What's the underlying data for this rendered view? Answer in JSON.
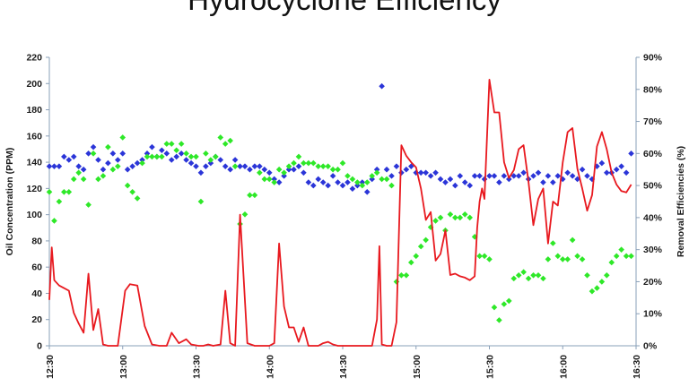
{
  "chart_data": {
    "type": "line",
    "title": "Hydrocyclone Efficiency",
    "ylabel": "Oil Concentration (PPM)",
    "y2label": "Removal Efficiencies (%)",
    "xlabel": "",
    "x_ticks": [
      "12:30",
      "13:00",
      "13:30",
      "14:00",
      "14:30",
      "15:00",
      "15:30",
      "16:00",
      "16:30"
    ],
    "ylim": [
      0,
      220
    ],
    "y_ticks": [
      0,
      20,
      40,
      60,
      80,
      100,
      120,
      140,
      160,
      180,
      200,
      220
    ],
    "y2lim": [
      0,
      90
    ],
    "y2_ticks": [
      "0%",
      "10%",
      "20%",
      "30%",
      "40%",
      "50%",
      "60%",
      "70%",
      "80%",
      "90%"
    ],
    "grid": false,
    "series": [
      {
        "axis": "left",
        "style": "line",
        "color": "#e8191f",
        "x": [
          750,
          751,
          752,
          754,
          756,
          758,
          760,
          762,
          764,
          766,
          768,
          770,
          772,
          774,
          776,
          778,
          781,
          783,
          786,
          789,
          792,
          795,
          798,
          800,
          803,
          806,
          808,
          811,
          813,
          815,
          817,
          820,
          822,
          824,
          826,
          828,
          831,
          834,
          837,
          838,
          840,
          842,
          844,
          846,
          848,
          850,
          852,
          854,
          856,
          858,
          860,
          862,
          864,
          866,
          868,
          870,
          872,
          874,
          876,
          878,
          880,
          882,
          884,
          885,
          886,
          888,
          890,
          892,
          894,
          896,
          898,
          900,
          902,
          904,
          906,
          908,
          910,
          912,
          914,
          916,
          918,
          920,
          922,
          924,
          925,
          926,
          927,
          928,
          930,
          932,
          934,
          936,
          938,
          940,
          942,
          944,
          946,
          948,
          950,
          952,
          954,
          956,
          958,
          960,
          962,
          964,
          966,
          968,
          970,
          972,
          974,
          976,
          978,
          980,
          982,
          984,
          986,
          988
        ],
        "y": [
          35,
          75,
          50,
          46,
          44,
          42,
          25,
          17,
          10,
          55,
          12,
          28,
          1,
          0,
          0,
          0,
          42,
          47,
          46,
          15,
          1,
          0,
          0,
          10,
          2,
          5,
          1,
          0,
          0,
          1,
          0,
          1,
          42,
          2,
          0,
          100,
          2,
          0,
          0,
          0,
          0,
          2,
          78,
          30,
          14,
          14,
          3,
          14,
          0,
          0,
          0,
          2,
          3,
          1,
          0,
          0,
          0,
          0,
          0,
          0,
          0,
          0,
          20,
          76,
          1,
          0,
          0,
          18,
          153,
          145,
          140,
          136,
          120,
          96,
          102,
          65,
          70,
          88,
          54,
          55,
          53,
          52,
          50,
          53,
          90,
          110,
          120,
          112,
          203,
          178,
          178,
          140,
          128,
          134,
          150,
          153,
          125,
          92,
          112,
          120,
          78,
          110,
          107,
          140,
          163,
          166,
          135,
          120,
          103,
          115,
          152,
          163,
          150,
          132,
          123,
          118,
          117,
          123
        ]
      },
      {
        "axis": "right",
        "style": "diamond",
        "color": "#2b35d8",
        "x": [
          750,
          752,
          754,
          756,
          758,
          760,
          762,
          764,
          766,
          768,
          770,
          772,
          774,
          776,
          778,
          780,
          782,
          784,
          786,
          788,
          790,
          792,
          794,
          796,
          798,
          800,
          802,
          804,
          806,
          808,
          810,
          812,
          814,
          816,
          818,
          820,
          822,
          824,
          826,
          828,
          830,
          832,
          834,
          836,
          838,
          840,
          842,
          844,
          846,
          848,
          850,
          852,
          854,
          856,
          858,
          860,
          862,
          864,
          866,
          868,
          870,
          872,
          874,
          876,
          878,
          880,
          882,
          884,
          886,
          888,
          890,
          892,
          894,
          896,
          898,
          900,
          902,
          904,
          906,
          908,
          910,
          912,
          914,
          916,
          918,
          920,
          922,
          924,
          926,
          928,
          930,
          932,
          934,
          936,
          938,
          940,
          942,
          944,
          946,
          948,
          950,
          952,
          954,
          956,
          958,
          960,
          962,
          964,
          966,
          968,
          970,
          972,
          974,
          976,
          978,
          980,
          982,
          984,
          986,
          988
        ],
        "y": [
          56,
          56,
          56,
          59,
          58,
          59,
          56,
          55,
          60,
          62,
          58,
          55,
          57,
          60,
          58,
          60,
          55,
          56,
          57,
          58,
          60,
          62,
          59,
          61,
          60,
          58,
          59,
          60,
          58,
          57,
          56,
          54,
          56,
          57,
          59,
          58,
          56,
          55,
          58,
          56,
          56,
          55,
          56,
          56,
          55,
          54,
          52,
          51,
          53,
          55,
          55,
          56,
          54,
          51,
          50,
          52,
          51,
          50,
          53,
          51,
          50,
          51,
          49,
          50,
          51,
          48,
          52,
          55,
          81,
          55,
          53,
          56,
          54,
          55,
          56,
          54,
          54,
          54,
          53,
          54,
          52,
          51,
          52,
          50,
          53,
          51,
          50,
          53,
          53,
          52,
          53,
          53,
          51,
          53,
          52,
          53,
          53,
          54,
          52,
          53,
          54,
          51,
          53,
          51,
          53,
          52,
          54,
          53,
          52,
          55,
          53,
          52,
          56,
          57,
          54,
          54,
          55,
          56,
          54,
          60
        ],
        "y_rendered": [
          56,
          56,
          56,
          59,
          58,
          59,
          56,
          55,
          60,
          62,
          58,
          55,
          57,
          60,
          58,
          60,
          55,
          56,
          57,
          58,
          60,
          62,
          59,
          61,
          60,
          58,
          59,
          60,
          58,
          57,
          56,
          54,
          56,
          57,
          59,
          58,
          56,
          55,
          58,
          56,
          56,
          55,
          56,
          56,
          55,
          54,
          52,
          51,
          53,
          55,
          55,
          56,
          54,
          51,
          50,
          52,
          51,
          50,
          53,
          51,
          50,
          51,
          49,
          50,
          51,
          48,
          52,
          55,
          81,
          55,
          53,
          56,
          54,
          55,
          56,
          54,
          54,
          54,
          53,
          54,
          52,
          51,
          52,
          50,
          53,
          51,
          50,
          53,
          53,
          52,
          53,
          53,
          51,
          53,
          52,
          53,
          53,
          54,
          52,
          53,
          54,
          51,
          53,
          51,
          53,
          52,
          54,
          53,
          52,
          55,
          53,
          52,
          56,
          57,
          54,
          54,
          55,
          56,
          54,
          60
        ]
      },
      {
        "axis": "right",
        "style": "diamond",
        "color": "#2ee828",
        "x": [
          750,
          752,
          754,
          756,
          758,
          760,
          762,
          764,
          766,
          768,
          770,
          772,
          774,
          776,
          778,
          780,
          782,
          784,
          786,
          788,
          790,
          792,
          794,
          796,
          798,
          800,
          802,
          804,
          806,
          808,
          810,
          812,
          814,
          816,
          818,
          820,
          822,
          824,
          826,
          828,
          830,
          832,
          834,
          836,
          838,
          840,
          842,
          844,
          846,
          848,
          850,
          852,
          854,
          856,
          858,
          860,
          862,
          864,
          866,
          868,
          870,
          872,
          874,
          876,
          878,
          880,
          882,
          884,
          886,
          888,
          890,
          892,
          894,
          896,
          898,
          900,
          902,
          904,
          906,
          908,
          910,
          912,
          914,
          916,
          918,
          920,
          922,
          924,
          926,
          928,
          930,
          932,
          934,
          936,
          938,
          940,
          942,
          944,
          946,
          948,
          950,
          952,
          954,
          956,
          958,
          960,
          962,
          964,
          966,
          968,
          970,
          972,
          974,
          976,
          978,
          980,
          982,
          984,
          986,
          988
        ],
        "y": [
          48,
          39,
          45,
          48,
          48,
          52,
          54,
          52,
          44,
          60,
          52,
          53,
          62,
          55,
          56,
          65,
          50,
          48,
          46,
          57,
          59,
          59,
          59,
          59,
          63,
          63,
          61,
          63,
          60,
          59,
          59,
          45,
          60,
          58,
          59,
          65,
          63,
          64,
          56,
          38,
          41,
          47,
          47,
          54,
          52,
          52,
          51,
          55,
          54,
          56,
          57,
          59,
          57,
          57,
          57,
          56,
          56,
          56,
          55,
          55,
          57,
          53,
          52,
          51,
          50,
          51,
          53,
          54,
          52,
          52,
          50,
          20,
          22,
          22,
          26,
          28,
          31,
          33,
          37,
          39,
          40,
          36,
          41,
          40,
          40,
          41,
          40,
          34,
          28,
          28,
          27,
          12,
          8,
          13,
          14,
          21,
          22,
          23,
          21,
          22,
          22,
          21,
          27,
          32,
          28,
          27,
          27,
          33,
          28,
          27,
          22,
          17,
          18,
          20,
          22,
          26,
          28,
          30,
          28,
          28
        ],
        "y_rendered": [
          48,
          39,
          45,
          48,
          48,
          52,
          54,
          52,
          44,
          60,
          52,
          53,
          62,
          55,
          56,
          65,
          50,
          48,
          46,
          57,
          59,
          59,
          59,
          59,
          63,
          63,
          61,
          63,
          60,
          59,
          59,
          45,
          60,
          58,
          59,
          65,
          63,
          64,
          56,
          38,
          41,
          47,
          47,
          54,
          52,
          52,
          51,
          55,
          54,
          56,
          57,
          59,
          57,
          57,
          57,
          56,
          56,
          56,
          55,
          55,
          57,
          53,
          52,
          51,
          50,
          51,
          53,
          54,
          52,
          52,
          50,
          20,
          22,
          22,
          26,
          28,
          31,
          33,
          37,
          39,
          40,
          36,
          41,
          40,
          40,
          41,
          40,
          34,
          28,
          28,
          27,
          12,
          8,
          13,
          14,
          21,
          22,
          23,
          21,
          22,
          22,
          21,
          27,
          32,
          28,
          27,
          27,
          33,
          28,
          27,
          22,
          17,
          18,
          20,
          22,
          26,
          28,
          30,
          28,
          28
        ]
      }
    ]
  }
}
